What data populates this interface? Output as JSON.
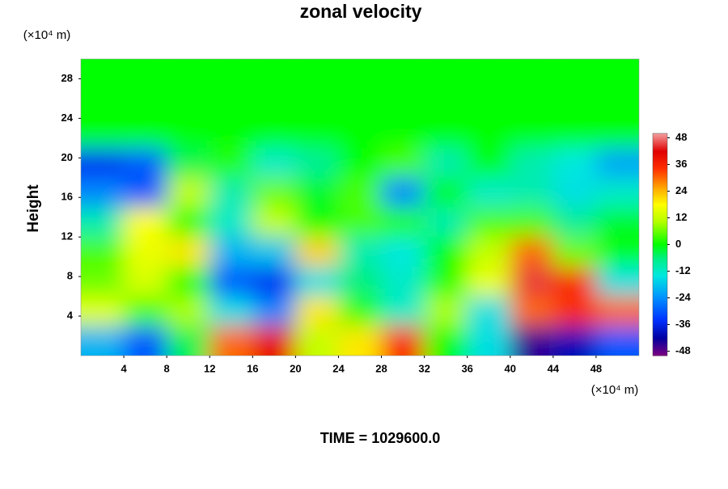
{
  "chart_data": {
    "type": "heatmap",
    "title": "zonal velocity",
    "ylabel": "Height",
    "yunit": "(×10⁴ m)",
    "xunit": "(×10⁴ m)",
    "annotation": "TIME = 1029600.0",
    "xlim": [
      0,
      52
    ],
    "ylim": [
      0,
      30
    ],
    "xticks": [
      4,
      8,
      12,
      16,
      20,
      24,
      28,
      32,
      36,
      40,
      44,
      48
    ],
    "yticks": [
      4,
      8,
      12,
      16,
      20,
      24,
      28
    ],
    "x": [
      2,
      6,
      10,
      14,
      18,
      22,
      26,
      30,
      34,
      38,
      42,
      46,
      50
    ],
    "y": [
      1.5,
      4.5,
      7.5,
      10.5,
      13.5,
      16.5,
      19.5,
      22.5,
      25.5,
      28.5
    ],
    "z": [
      [
        -20,
        -30,
        -4,
        30,
        40,
        12,
        20,
        35,
        0,
        -15,
        -45,
        -40,
        -30
      ],
      [
        15,
        4,
        10,
        -15,
        -25,
        20,
        2,
        -12,
        10,
        -15,
        30,
        35,
        30
      ],
      [
        6,
        14,
        0,
        -30,
        -35,
        -15,
        -6,
        -12,
        2,
        16,
        45,
        35,
        -15
      ],
      [
        4,
        16,
        20,
        -20,
        -18,
        22,
        -10,
        -14,
        0,
        12,
        30,
        6,
        0
      ],
      [
        -10,
        18,
        2,
        -12,
        12,
        0,
        4,
        2,
        -10,
        4,
        4,
        -8,
        -2
      ],
      [
        -25,
        -30,
        12,
        -10,
        6,
        -2,
        4,
        -25,
        0,
        -12,
        -10,
        -15,
        -12
      ],
      [
        -35,
        -30,
        -4,
        2,
        -12,
        -8,
        0,
        4,
        -10,
        0,
        -10,
        -14,
        -22
      ],
      [
        0,
        0,
        0,
        0,
        0,
        0,
        0,
        0,
        0,
        0,
        0,
        0,
        0
      ],
      [
        0,
        0,
        0,
        0,
        0,
        0,
        0,
        0,
        0,
        0,
        0,
        0,
        0
      ],
      [
        0,
        0,
        0,
        0,
        0,
        0,
        0,
        0,
        0,
        0,
        0,
        0,
        0
      ]
    ],
    "zlim": [
      -50,
      50
    ],
    "zticks": [
      -48,
      -36,
      -24,
      -12,
      0,
      12,
      24,
      36,
      48
    ],
    "colorscale": [
      [
        -50,
        "#800080"
      ],
      [
        -42,
        "#0000a0"
      ],
      [
        -34,
        "#0030ff"
      ],
      [
        -24,
        "#0090ff"
      ],
      [
        -14,
        "#00e8e0"
      ],
      [
        -6,
        "#00f080"
      ],
      [
        0,
        "#00ff00"
      ],
      [
        10,
        "#b0ff00"
      ],
      [
        18,
        "#ffff00"
      ],
      [
        26,
        "#ffa000"
      ],
      [
        34,
        "#ff3000"
      ],
      [
        42,
        "#e00000"
      ],
      [
        50,
        "#f4a0a0"
      ]
    ]
  }
}
